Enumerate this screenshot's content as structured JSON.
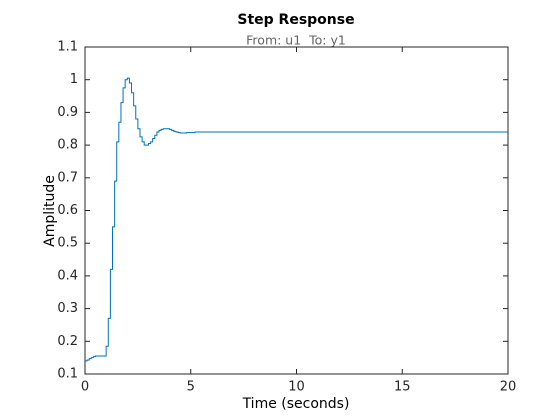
{
  "chart_data": {
    "type": "stairs",
    "title": "Step Response",
    "subtitle": "From: u1  To: y1",
    "x_label": "Time (seconds)",
    "y_label": "Amplitude",
    "x": [
      0,
      0.1,
      0.2,
      0.3,
      0.4,
      0.5,
      0.6,
      0.7,
      0.8,
      0.9,
      1.0,
      1.1,
      1.2,
      1.3,
      1.4,
      1.5,
      1.6,
      1.7,
      1.8,
      1.9,
      2.0,
      2.1,
      2.2,
      2.3,
      2.4,
      2.5,
      2.6,
      2.7,
      2.8,
      2.9,
      3.0,
      3.1,
      3.2,
      3.3,
      3.4,
      3.5,
      3.6,
      3.7,
      3.8,
      3.9,
      4.0,
      4.1,
      4.2,
      4.3,
      4.4,
      4.5,
      4.6,
      4.7,
      4.8,
      4.9,
      5.0,
      5.2,
      20
    ],
    "values": [
      0.14,
      0.143,
      0.147,
      0.15,
      0.153,
      0.155,
      0.155,
      0.155,
      0.155,
      0.155,
      0.185,
      0.27,
      0.42,
      0.55,
      0.69,
      0.81,
      0.87,
      0.93,
      0.975,
      1.0,
      1.005,
      0.99,
      0.96,
      0.92,
      0.88,
      0.85,
      0.825,
      0.81,
      0.8,
      0.8,
      0.805,
      0.81,
      0.82,
      0.83,
      0.84,
      0.845,
      0.848,
      0.85,
      0.85,
      0.85,
      0.848,
      0.845,
      0.842,
      0.84,
      0.838,
      0.837,
      0.837,
      0.837,
      0.838,
      0.838,
      0.838,
      0.84,
      0.84
    ],
    "color": "#0072bd",
    "xlim": [
      0,
      20
    ],
    "xticks": [
      0,
      5,
      10,
      15,
      20
    ],
    "ylim": [
      0.1,
      1.1
    ],
    "yticks": [
      0.1,
      0.2,
      0.3,
      0.4,
      0.5,
      0.6,
      0.7,
      0.8,
      0.9,
      1,
      1.1
    ],
    "grid": false
  }
}
